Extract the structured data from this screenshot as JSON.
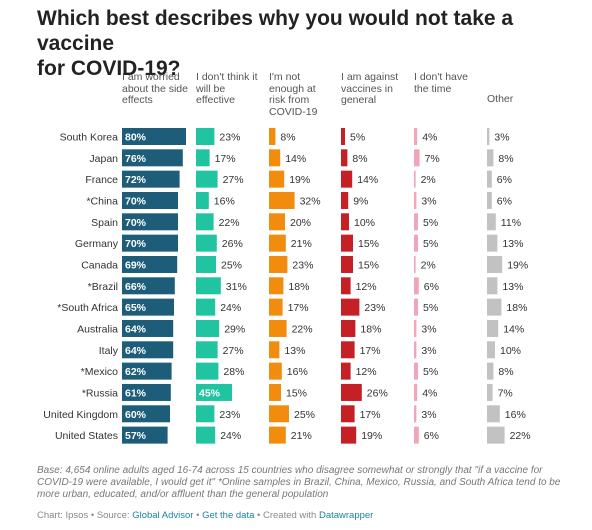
{
  "title_line1": "Which best describes why you would not take a vaccine",
  "title_line2": "for COVID-19?",
  "columns": [
    {
      "label": "I am worried about the side effects",
      "color": "#1d5d7a"
    },
    {
      "label": "I don't think it will be effective",
      "color": "#20c4a0"
    },
    {
      "label": "I'm not enough at risk from COVID-19",
      "color": "#f28c0f"
    },
    {
      "label": "I am against vaccines in general",
      "color": "#c42026"
    },
    {
      "label": "I don't have the time",
      "color": "#f0a6b6"
    },
    {
      "label": "Other",
      "color": "#c2c2c2"
    }
  ],
  "chart_data": {
    "type": "bar",
    "title": "Which best describes why you would not take a vaccine for COVID-19?",
    "categories": [
      "South Korea",
      "Japan",
      "France",
      "*China",
      "Spain",
      "Germany",
      "Canada",
      "*Brazil",
      "*South Africa",
      "Australia",
      "Italy",
      "*Mexico",
      "*Russia",
      "United Kingdom",
      "United States"
    ],
    "series": [
      {
        "name": "I am worried about the side effects",
        "values": [
          80,
          76,
          72,
          70,
          70,
          70,
          69,
          66,
          65,
          64,
          64,
          62,
          61,
          60,
          57
        ]
      },
      {
        "name": "I don't think it will be effective",
        "values": [
          23,
          17,
          27,
          16,
          22,
          26,
          25,
          31,
          24,
          29,
          27,
          28,
          45,
          23,
          24
        ]
      },
      {
        "name": "I'm not enough at risk from COVID-19",
        "values": [
          8,
          14,
          19,
          32,
          20,
          21,
          23,
          18,
          17,
          22,
          13,
          16,
          15,
          25,
          21
        ]
      },
      {
        "name": "I am against vaccines in general",
        "values": [
          5,
          8,
          14,
          9,
          10,
          15,
          15,
          12,
          23,
          18,
          17,
          12,
          26,
          17,
          19
        ]
      },
      {
        "name": "I don't have the time",
        "values": [
          4,
          7,
          2,
          3,
          5,
          5,
          2,
          6,
          5,
          3,
          3,
          5,
          4,
          3,
          6
        ]
      },
      {
        "name": "Other",
        "values": [
          3,
          8,
          6,
          6,
          11,
          13,
          19,
          13,
          18,
          14,
          10,
          8,
          7,
          16,
          22
        ]
      }
    ],
    "value_suffix": "%",
    "ylim": [
      0,
      100
    ]
  },
  "notes": "Base: 4,654 online adults aged 16-74 across 15 countries who disagree somewhat or strongly that \"if a vaccine for COVID-19 were available, I would get it\" *Online samples in Brazil, China, Mexico, Russia, and South Africa tend to be more urban, educated, and/or affluent than the general population",
  "footer": {
    "prefix": "Chart: Ipsos • Source: ",
    "source": "Global Advisor",
    "sep1": " • ",
    "data_link": "Get the data",
    "sep2": " • Created with ",
    "tool": "Datawrapper"
  }
}
